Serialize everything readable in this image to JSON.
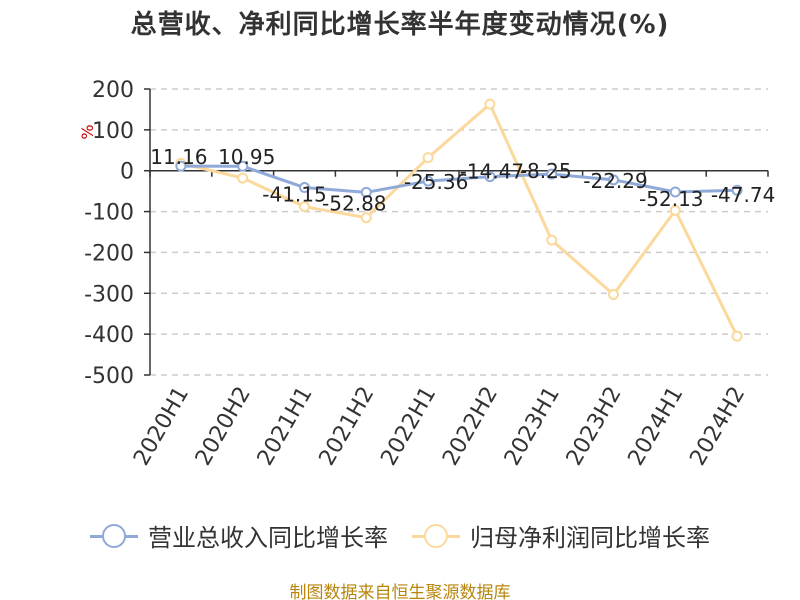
{
  "title": "总营收、净利同比增长率半年度变动情况(%)",
  "source": "制图数据来自恒生聚源数据库",
  "chart_data": {
    "type": "line",
    "title": "总营收、净利同比增长率半年度变动情况(%)",
    "ylabel": "%",
    "xlabel": "",
    "ylim": [
      -500,
      200
    ],
    "yticks": [
      200,
      100,
      0,
      -100,
      -200,
      -300,
      -400,
      -500
    ],
    "ytick_labels": [
      "200",
      "100",
      "0",
      "-100",
      "-200",
      "-300",
      "-400",
      "-500"
    ],
    "grid": true,
    "legend_position": "bottom",
    "categories": [
      "2020H1",
      "2020H2",
      "2021H1",
      "2021H2",
      "2022H1",
      "2022H2",
      "2023H1",
      "2023H2",
      "2024H1",
      "2024H2"
    ],
    "series": [
      {
        "name": "营业总收入同比增长率",
        "color": "#8fa9d8",
        "values": [
          11.16,
          10.95,
          -41.15,
          -52.88,
          -25.36,
          -14.47,
          -8.25,
          -22.29,
          -52.13,
          -47.74
        ],
        "labels": [
          "11.16",
          "10.95",
          "-41.15",
          "-52.88",
          "-25.36",
          "-14.47",
          "-8.25",
          "-22.29",
          "-52.13",
          "-47.74"
        ]
      },
      {
        "name": "归母净利润同比增长率",
        "color": "#fbd89b",
        "values": [
          18,
          -18,
          -88,
          -115,
          32,
          163,
          -170,
          -303,
          -97,
          -405
        ]
      }
    ]
  }
}
